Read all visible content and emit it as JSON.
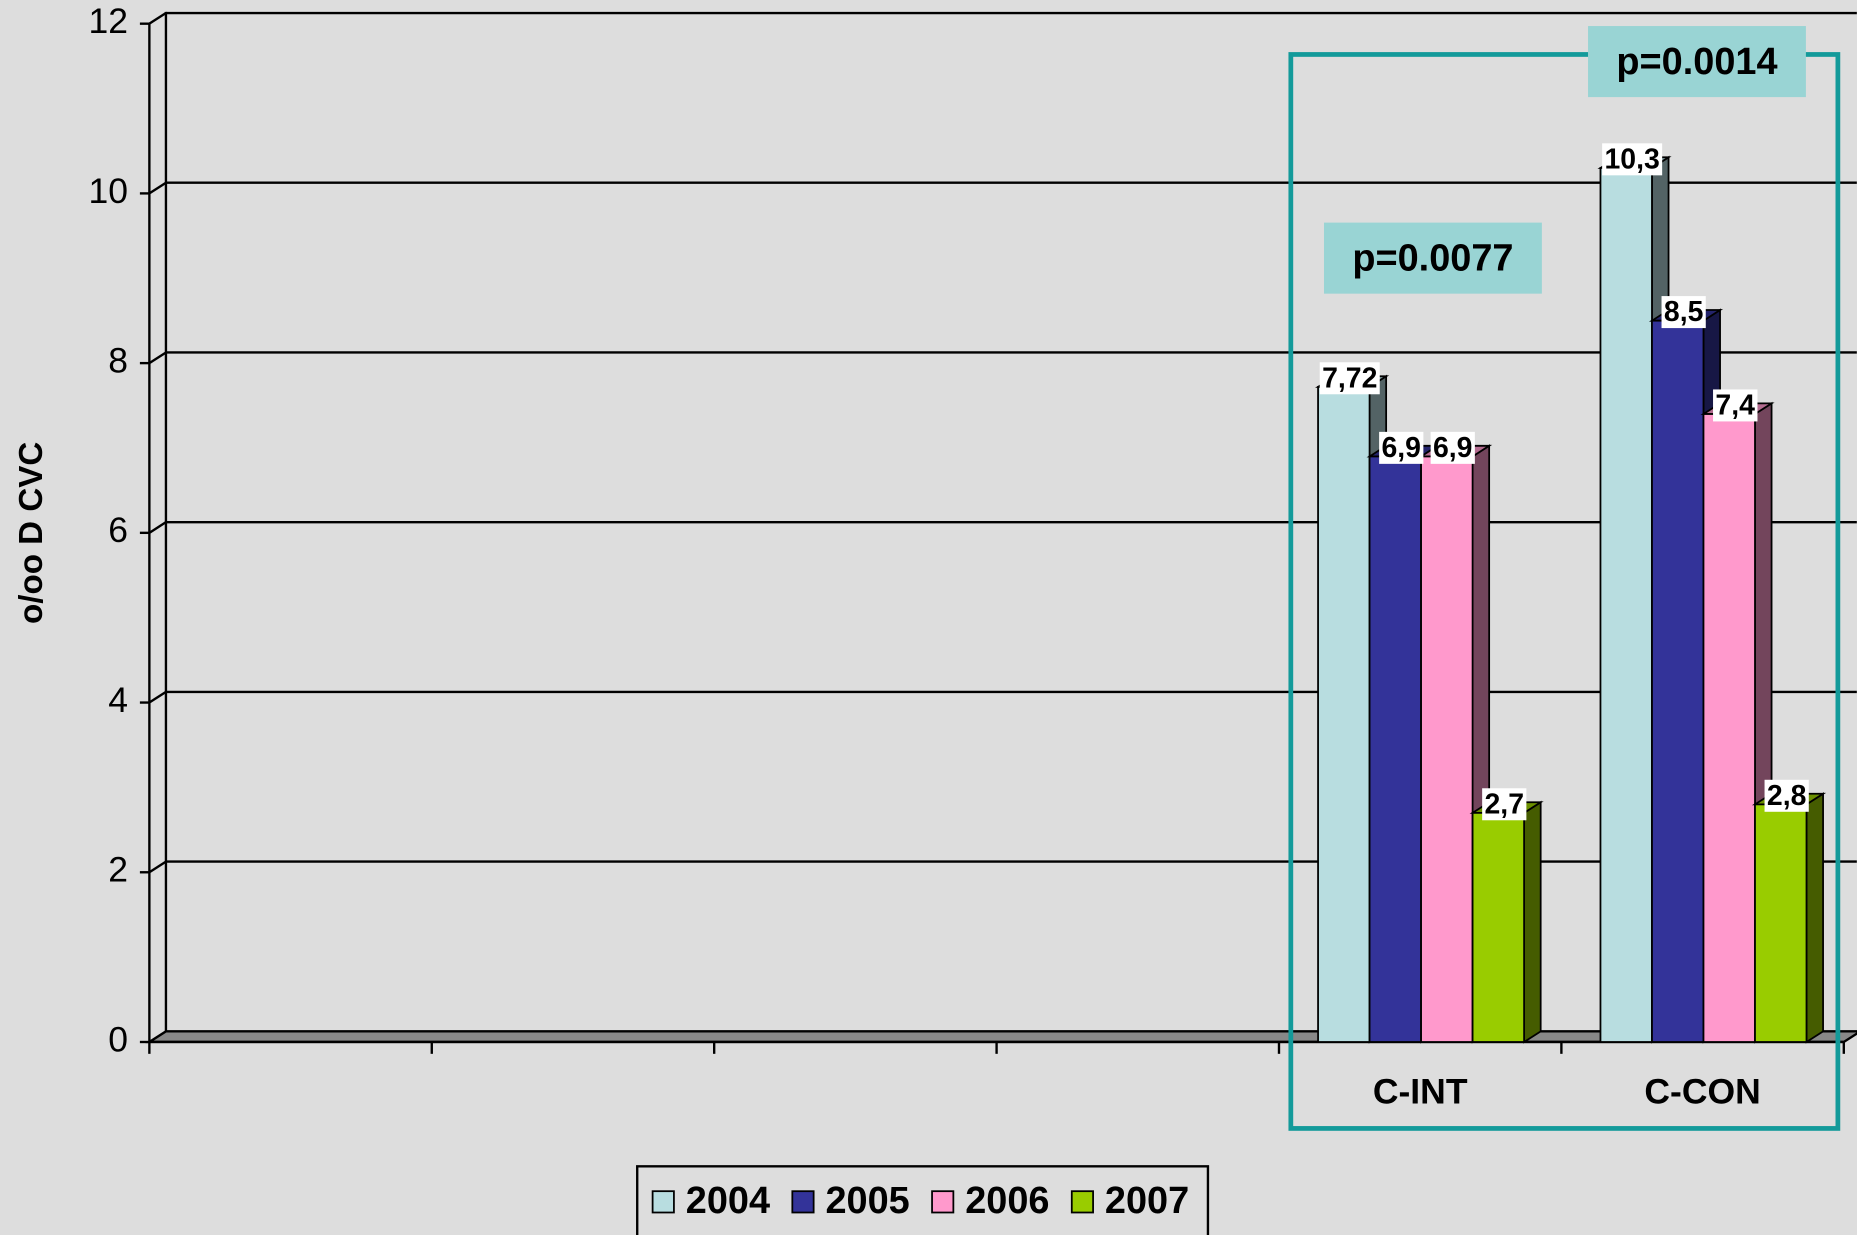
{
  "chart_data": {
    "type": "bar3d",
    "y_label": "o/oo D CVC",
    "categories": [
      null,
      null,
      null,
      null,
      "C-INT",
      "C-CON"
    ],
    "series": [
      {
        "name": "2004",
        "color": "#b8dde0",
        "values": [
          null,
          null,
          null,
          null,
          7.72,
          10.3
        ],
        "value_labels": [
          null,
          null,
          null,
          null,
          "7,72",
          "10,3"
        ]
      },
      {
        "name": "2005",
        "color": "#333399",
        "values": [
          null,
          null,
          null,
          null,
          6.9,
          8.5
        ],
        "value_labels": [
          null,
          null,
          null,
          null,
          "6,9",
          "8,5"
        ]
      },
      {
        "name": "2006",
        "color": "#ff99cc",
        "values": [
          null,
          null,
          null,
          null,
          6.9,
          7.4
        ],
        "value_labels": [
          null,
          null,
          null,
          null,
          "6,9",
          "7,4"
        ]
      },
      {
        "name": "2007",
        "color": "#99cc00",
        "values": [
          null,
          null,
          null,
          null,
          2.7,
          2.8
        ],
        "value_labels": [
          null,
          null,
          null,
          null,
          "2,7",
          "2,8"
        ]
      }
    ],
    "annotations": [
      "p=0.0077",
      "p=0.0014"
    ],
    "ylim": [
      0,
      12
    ],
    "yticks": [
      0,
      2,
      4,
      6,
      8,
      10,
      12
    ],
    "grid": true,
    "legend": "bottom"
  }
}
